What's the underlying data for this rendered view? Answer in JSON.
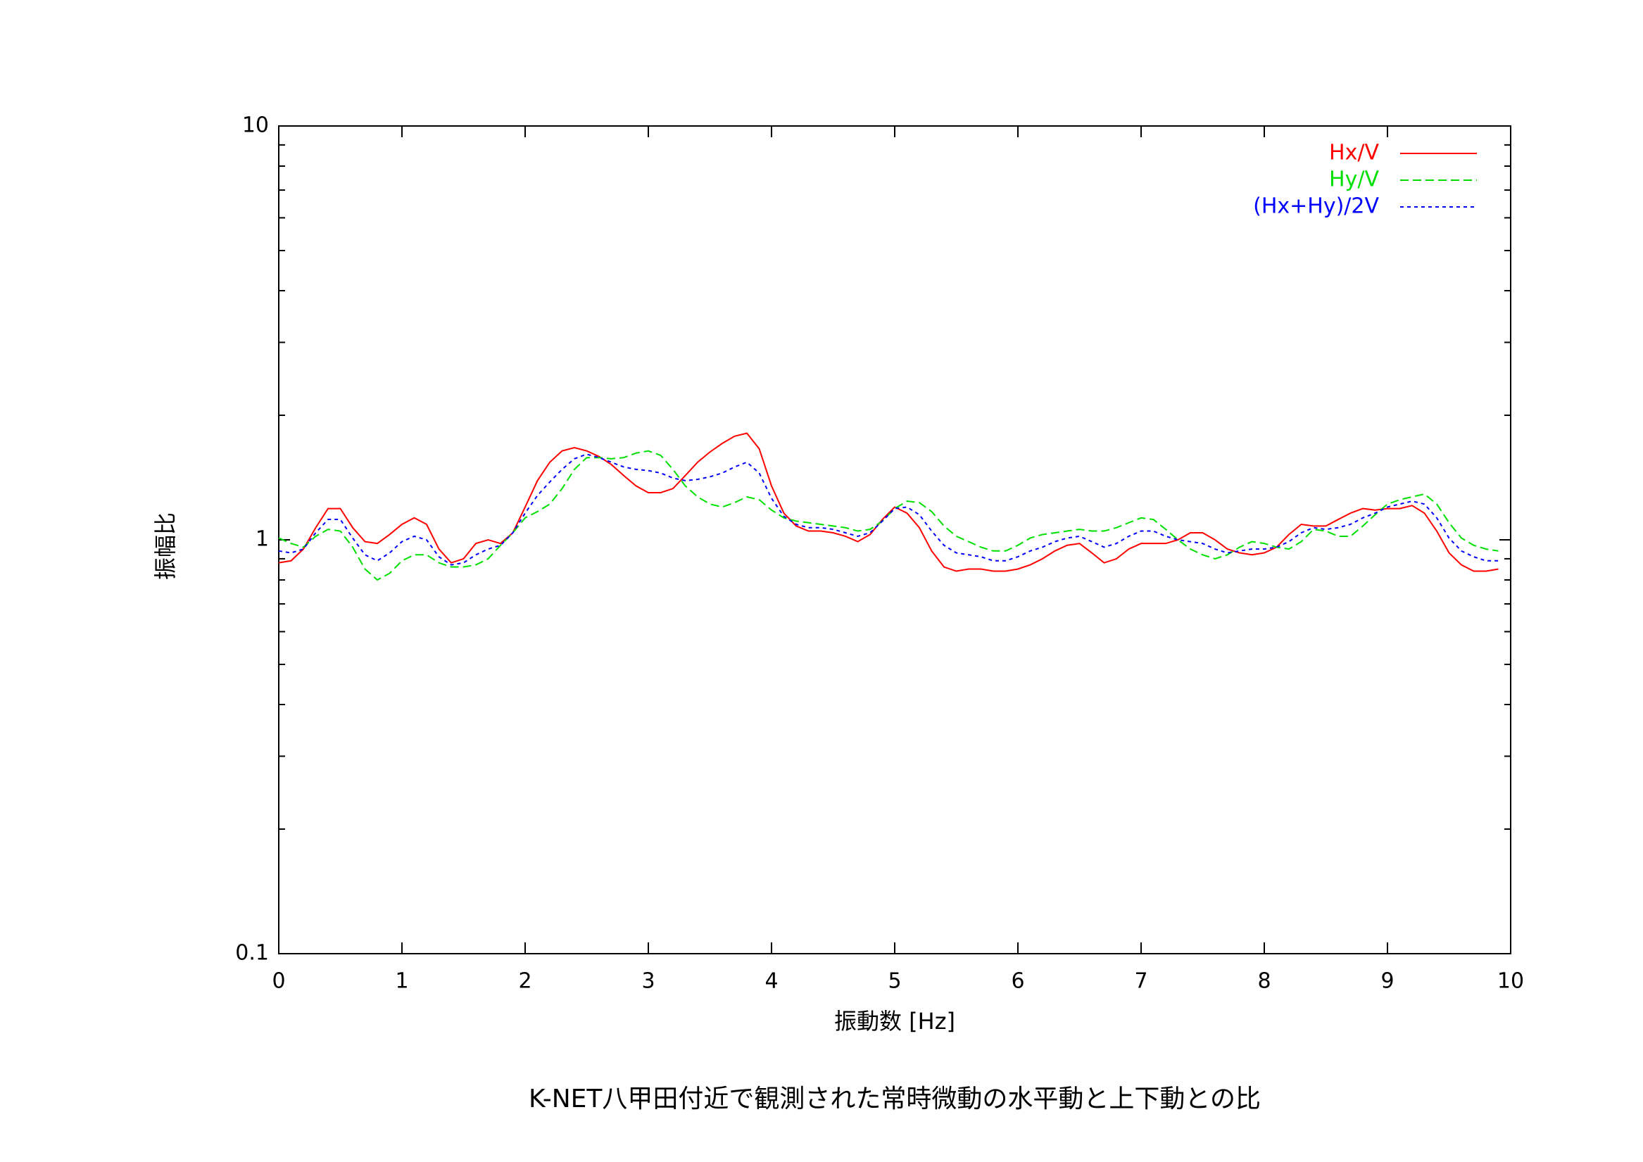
{
  "chart_data": {
    "type": "line",
    "title": "K-NET八甲田付近で観測された常時微動の水平動と上下動との比",
    "xlabel": "振動数 [Hz]",
    "ylabel": "振幅比",
    "xlim": [
      0,
      10
    ],
    "xticks": [
      0,
      1,
      2,
      3,
      4,
      5,
      6,
      7,
      8,
      9,
      10
    ],
    "ylim": [
      0.1,
      10
    ],
    "yticks": [
      0.1,
      1,
      10
    ],
    "yminorticks": [
      0.2,
      0.3,
      0.4,
      0.5,
      0.6,
      0.7,
      0.8,
      0.9,
      2,
      3,
      4,
      5,
      6,
      7,
      8,
      9
    ],
    "ylog": true,
    "legend": "top-right",
    "x": [
      0,
      0.1,
      0.2,
      0.3,
      0.4,
      0.5,
      0.6,
      0.7,
      0.8,
      0.9,
      1,
      1.1,
      1.2,
      1.3,
      1.4,
      1.5,
      1.6,
      1.7,
      1.8,
      1.9,
      2,
      2.1,
      2.2,
      2.3,
      2.4,
      2.5,
      2.6,
      2.7,
      2.8,
      2.9,
      3,
      3.1,
      3.2,
      3.3,
      3.4,
      3.5,
      3.6,
      3.7,
      3.8,
      3.9,
      4,
      4.1,
      4.2,
      4.3,
      4.4,
      4.5,
      4.6,
      4.7,
      4.8,
      4.9,
      5,
      5.1,
      5.2,
      5.3,
      5.4,
      5.5,
      5.6,
      5.7,
      5.8,
      5.9,
      6,
      6.1,
      6.2,
      6.3,
      6.4,
      6.5,
      6.6,
      6.7,
      6.8,
      6.9,
      7,
      7.1,
      7.2,
      7.3,
      7.4,
      7.5,
      7.6,
      7.7,
      7.8,
      7.9,
      8,
      8.1,
      8.2,
      8.3,
      8.4,
      8.5,
      8.6,
      8.7,
      8.8,
      8.9,
      9,
      9.1,
      9.2,
      9.3,
      9.4,
      9.5,
      9.6,
      9.7,
      9.8,
      9.9
    ],
    "series": [
      {
        "name": "Hx/V",
        "color": "#ff0000",
        "dash": "solid",
        "values": [
          0.88,
          0.89,
          0.95,
          1.07,
          1.19,
          1.19,
          1.07,
          0.99,
          0.98,
          1.03,
          1.09,
          1.13,
          1.09,
          0.95,
          0.88,
          0.9,
          0.98,
          1.0,
          0.98,
          1.04,
          1.2,
          1.39,
          1.54,
          1.64,
          1.67,
          1.64,
          1.59,
          1.52,
          1.43,
          1.35,
          1.3,
          1.3,
          1.33,
          1.43,
          1.54,
          1.63,
          1.71,
          1.78,
          1.81,
          1.66,
          1.35,
          1.16,
          1.08,
          1.05,
          1.05,
          1.04,
          1.02,
          0.99,
          1.03,
          1.12,
          1.2,
          1.16,
          1.07,
          0.94,
          0.86,
          0.84,
          0.85,
          0.85,
          0.84,
          0.84,
          0.85,
          0.87,
          0.9,
          0.94,
          0.97,
          0.98,
          0.93,
          0.88,
          0.9,
          0.95,
          0.98,
          0.98,
          0.98,
          1.0,
          1.04,
          1.04,
          1.0,
          0.95,
          0.93,
          0.92,
          0.93,
          0.96,
          1.03,
          1.09,
          1.08,
          1.08,
          1.12,
          1.16,
          1.19,
          1.18,
          1.19,
          1.19,
          1.21,
          1.16,
          1.05,
          0.93,
          0.87,
          0.84,
          0.84,
          0.85
        ]
      },
      {
        "name": "Hy/V",
        "color": "#00e000",
        "dash": "dashed",
        "values": [
          1.01,
          0.98,
          0.96,
          1.02,
          1.06,
          1.05,
          0.96,
          0.85,
          0.8,
          0.83,
          0.89,
          0.92,
          0.92,
          0.88,
          0.86,
          0.86,
          0.87,
          0.9,
          0.97,
          1.04,
          1.13,
          1.17,
          1.22,
          1.33,
          1.48,
          1.58,
          1.58,
          1.57,
          1.58,
          1.62,
          1.64,
          1.6,
          1.48,
          1.35,
          1.27,
          1.22,
          1.2,
          1.23,
          1.27,
          1.25,
          1.18,
          1.13,
          1.11,
          1.1,
          1.09,
          1.08,
          1.07,
          1.05,
          1.06,
          1.11,
          1.19,
          1.24,
          1.23,
          1.17,
          1.08,
          1.02,
          0.99,
          0.96,
          0.94,
          0.94,
          0.97,
          1.01,
          1.03,
          1.04,
          1.05,
          1.06,
          1.05,
          1.05,
          1.07,
          1.1,
          1.13,
          1.12,
          1.06,
          1.0,
          0.95,
          0.92,
          0.9,
          0.92,
          0.96,
          0.99,
          0.98,
          0.96,
          0.95,
          0.99,
          1.06,
          1.05,
          1.02,
          1.02,
          1.08,
          1.15,
          1.22,
          1.25,
          1.27,
          1.29,
          1.22,
          1.1,
          1.01,
          0.97,
          0.95,
          0.94
        ]
      },
      {
        "name": "(Hx+Hy)/2V",
        "color": "#0000ff",
        "dash": "dotted",
        "values": [
          0.94,
          0.93,
          0.95,
          1.04,
          1.12,
          1.12,
          1.01,
          0.92,
          0.89,
          0.93,
          0.99,
          1.02,
          1.0,
          0.91,
          0.87,
          0.88,
          0.92,
          0.95,
          0.97,
          1.04,
          1.16,
          1.28,
          1.38,
          1.48,
          1.57,
          1.61,
          1.58,
          1.54,
          1.5,
          1.48,
          1.47,
          1.45,
          1.41,
          1.39,
          1.4,
          1.42,
          1.45,
          1.5,
          1.54,
          1.45,
          1.26,
          1.14,
          1.09,
          1.07,
          1.07,
          1.06,
          1.04,
          1.02,
          1.04,
          1.11,
          1.19,
          1.2,
          1.15,
          1.05,
          0.97,
          0.93,
          0.92,
          0.91,
          0.89,
          0.89,
          0.91,
          0.94,
          0.96,
          0.99,
          1.01,
          1.02,
          0.99,
          0.96,
          0.98,
          1.02,
          1.05,
          1.05,
          1.02,
          1.0,
          0.99,
          0.98,
          0.95,
          0.93,
          0.94,
          0.95,
          0.95,
          0.96,
          0.99,
          1.04,
          1.07,
          1.06,
          1.07,
          1.09,
          1.13,
          1.16,
          1.2,
          1.22,
          1.24,
          1.22,
          1.13,
          1.01,
          0.94,
          0.91,
          0.89,
          0.89
        ]
      }
    ]
  }
}
